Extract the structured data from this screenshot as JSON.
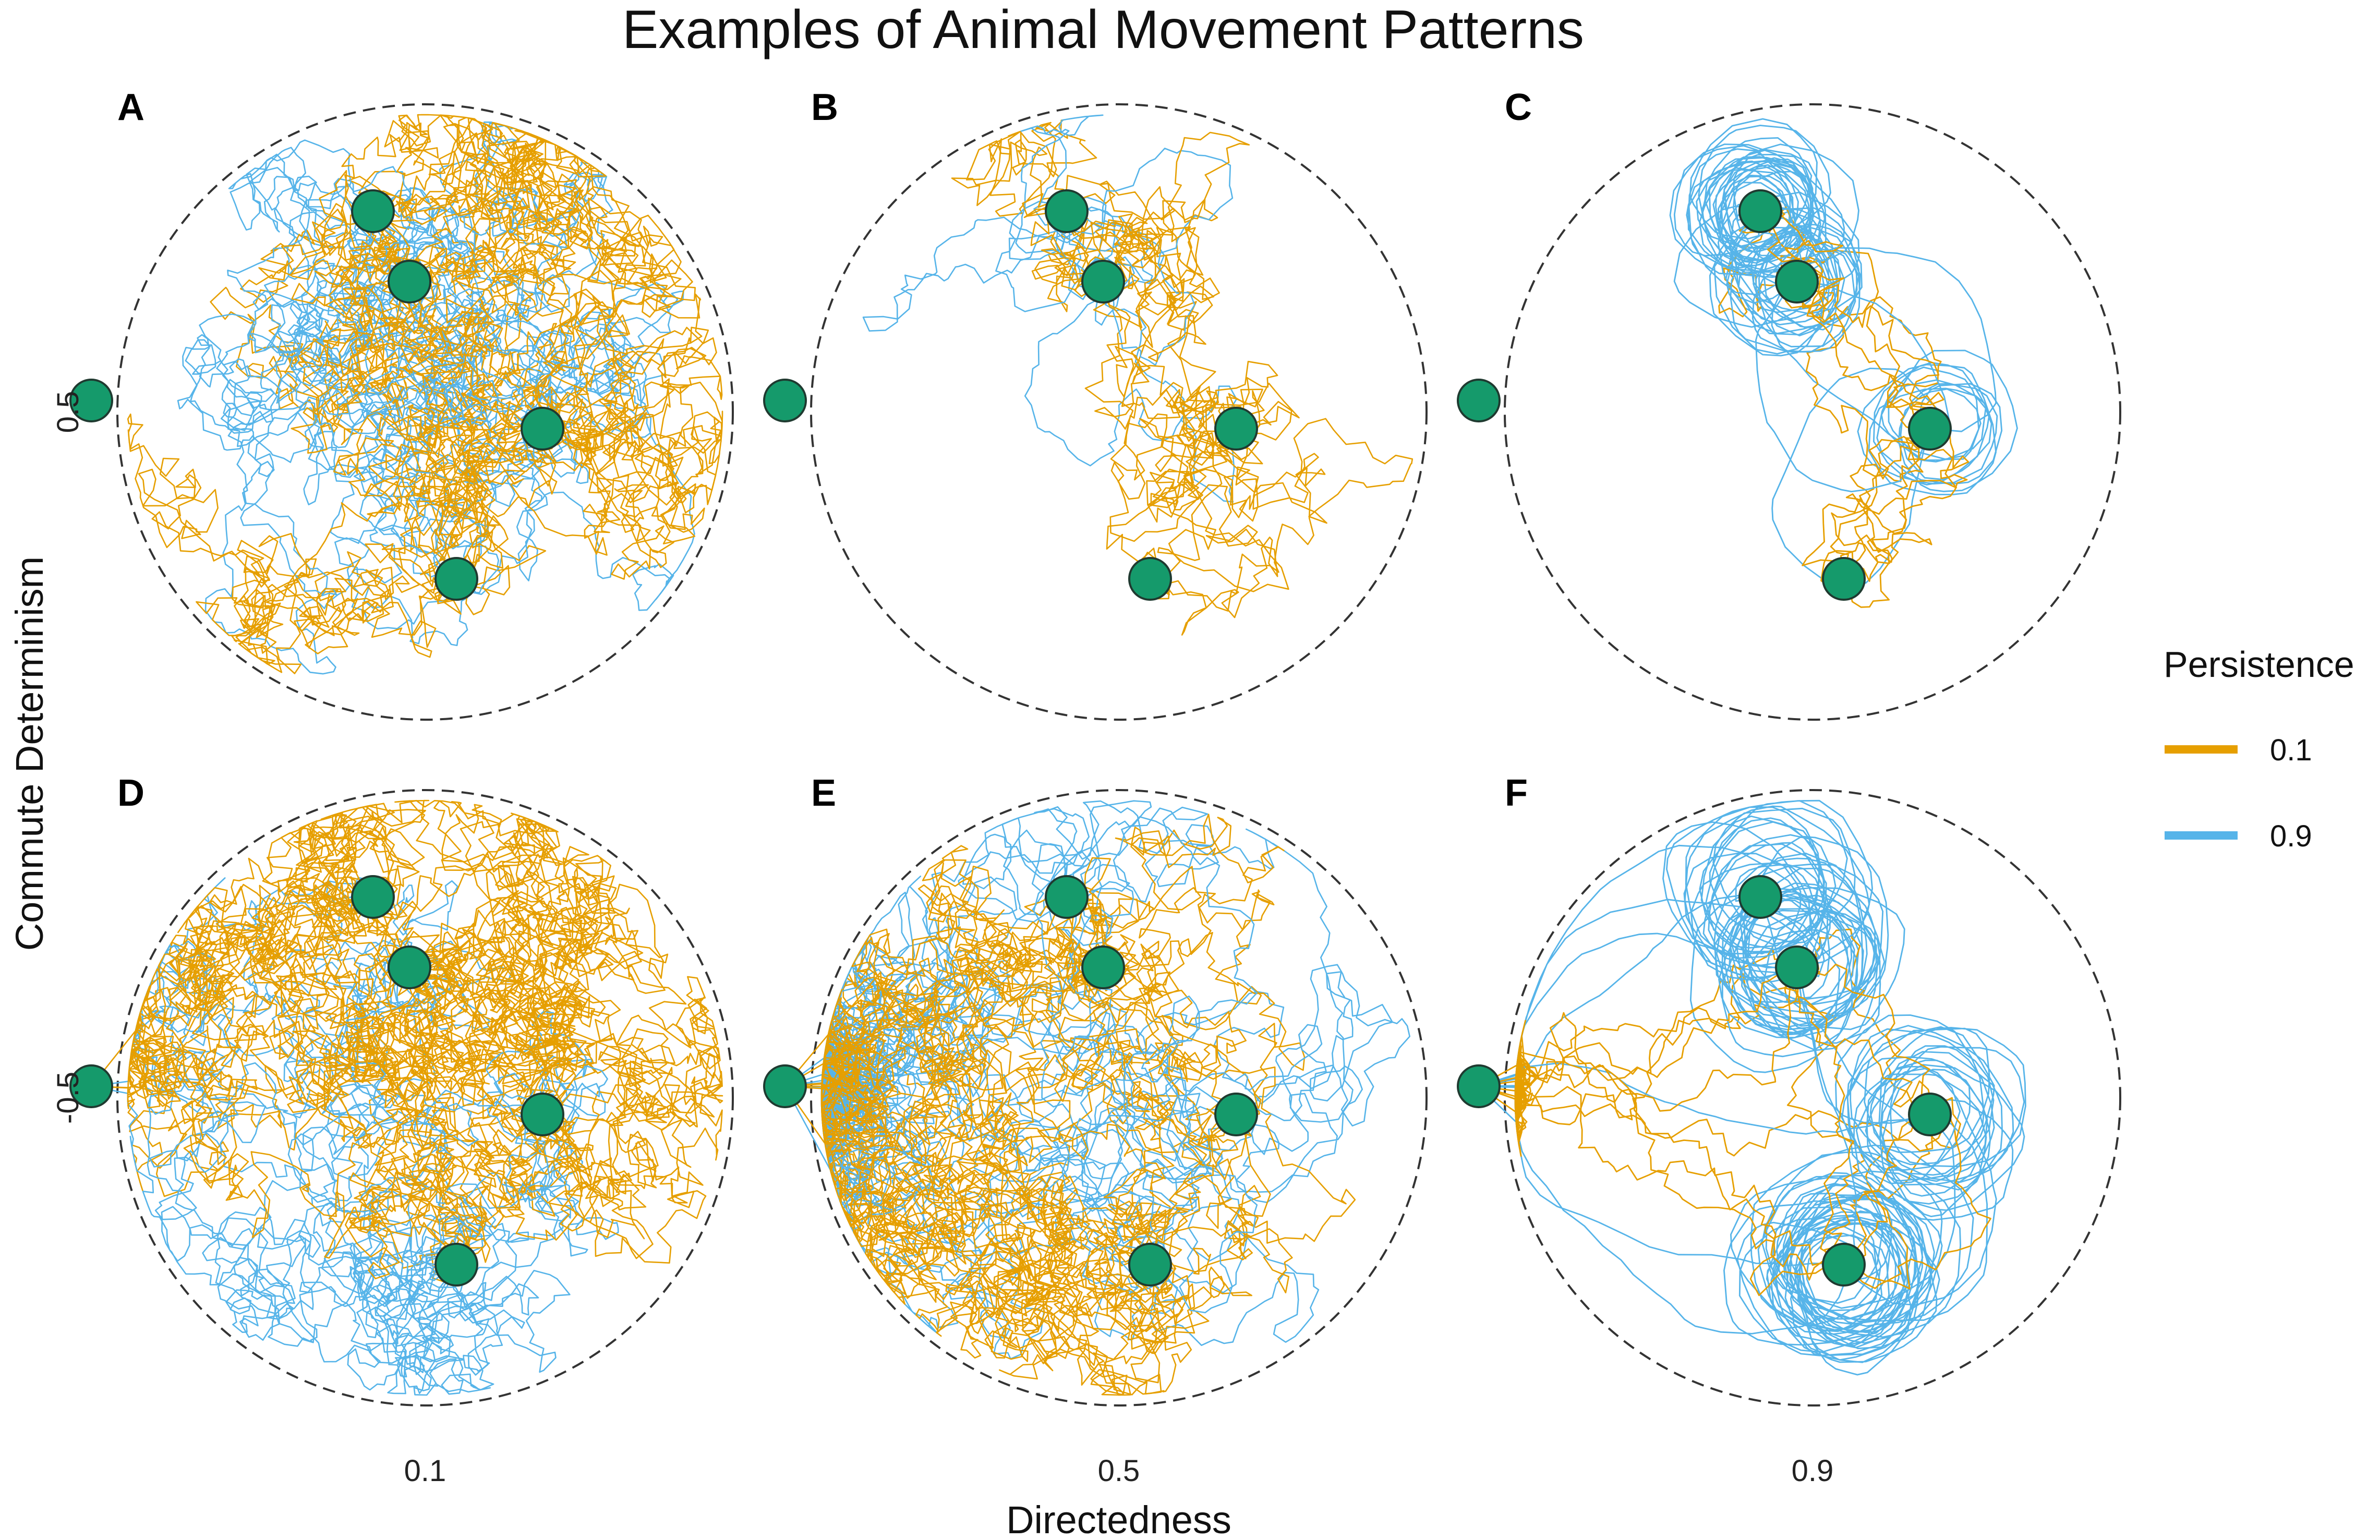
{
  "title": "Examples of Animal Movement Patterns",
  "x_axis_title": "Directedness",
  "y_axis_title": "Commute Determinism",
  "legend": {
    "title": "Persistence",
    "items": [
      {
        "label": "0.1",
        "color": "#E69F00"
      },
      {
        "label": "0.9",
        "color": "#56B4E9"
      }
    ]
  },
  "colors": {
    "site": "#159A6B",
    "boundary": "#333333",
    "persistence_low": "#E69F00",
    "persistence_high": "#56B4E9"
  },
  "chart_data": {
    "type": "faceted trajectory maps",
    "columns": [
      "0.1",
      "0.5",
      "0.9"
    ],
    "rows": [
      "0.5",
      "-0.5"
    ],
    "panels": [
      {
        "letter": "A",
        "directedness": 0.1,
        "commute_determinism": 0.5
      },
      {
        "letter": "B",
        "directedness": 0.5,
        "commute_determinism": 0.5
      },
      {
        "letter": "C",
        "directedness": 0.9,
        "commute_determinism": 0.5
      },
      {
        "letter": "D",
        "directedness": 0.1,
        "commute_determinism": -0.5
      },
      {
        "letter": "E",
        "directedness": 0.5,
        "commute_determinism": -0.5
      },
      {
        "letter": "F",
        "directedness": 0.9,
        "commute_determinism": -0.5
      }
    ],
    "series": [
      {
        "name": "0.1",
        "color": "#E69F00"
      },
      {
        "name": "0.9",
        "color": "#56B4E9"
      }
    ]
  }
}
